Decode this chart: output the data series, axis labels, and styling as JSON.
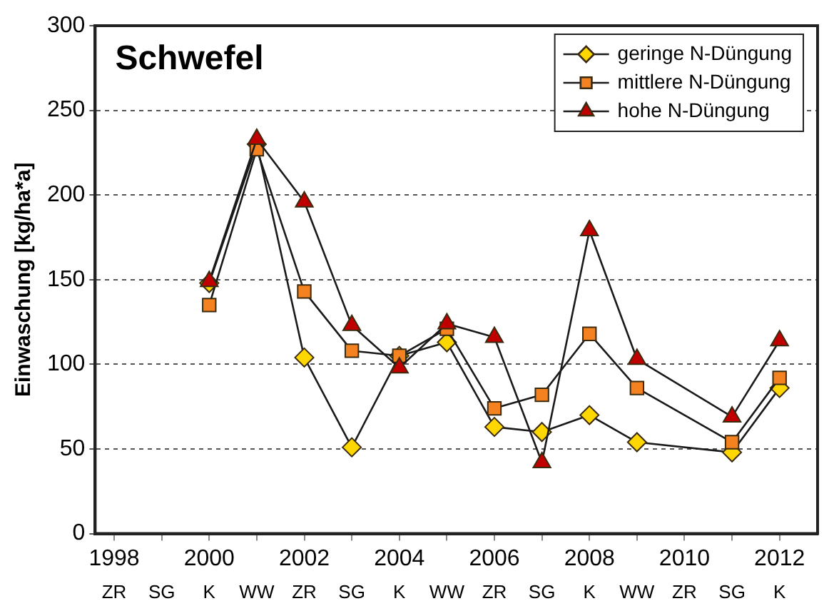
{
  "chart_data": {
    "type": "line",
    "title": "Schwefel",
    "ylabel": "Einwaschung [kg/ha*a]",
    "x": [
      2000,
      2001,
      2002,
      2003,
      2004,
      2005,
      2006,
      2007,
      2008,
      2009,
      2011,
      2012
    ],
    "series": [
      {
        "name": "geringe N-Düngung",
        "color": "#ffd700",
        "marker": "diamond",
        "values": [
          148,
          230,
          104,
          51,
          105,
          113,
          63,
          60,
          70,
          54,
          48,
          86
        ]
      },
      {
        "name": "mittlere N-Düngung",
        "color": "#f58220",
        "marker": "square",
        "values": [
          135,
          227,
          143,
          108,
          105,
          121,
          74,
          82,
          118,
          86,
          54,
          92
        ]
      },
      {
        "name": "hohe N-Düngung",
        "color": "#c00000",
        "marker": "triangle",
        "values": [
          149,
          233,
          196,
          123,
          98,
          124,
          116,
          42,
          179,
          103,
          69,
          114
        ]
      }
    ],
    "xlim": [
      1997.6,
      2012.8
    ],
    "xticks": [
      1998,
      {
        "value": 1999,
        "label": null
      },
      2000,
      {
        "value": 2001,
        "label": null
      },
      2002,
      {
        "value": 2003,
        "label": null
      },
      2004,
      {
        "value": 2005,
        "label": null
      },
      2006,
      {
        "value": 2007,
        "label": null
      },
      2008,
      {
        "value": 2009,
        "label": null
      },
      2010,
      {
        "value": 2011,
        "label": null
      },
      2012
    ],
    "annotations": [
      "ZR",
      "SG",
      "K",
      "WW",
      "ZR",
      "SG",
      "K",
      "WW",
      "ZR",
      "SG",
      "K",
      "WW",
      "ZR",
      "SG",
      "K"
    ],
    "ylim": [
      0,
      300
    ],
    "yticks": [
      0,
      50,
      100,
      150,
      200,
      250,
      300
    ],
    "grid": "y",
    "legend": "top right",
    "line_style": "solid"
  }
}
